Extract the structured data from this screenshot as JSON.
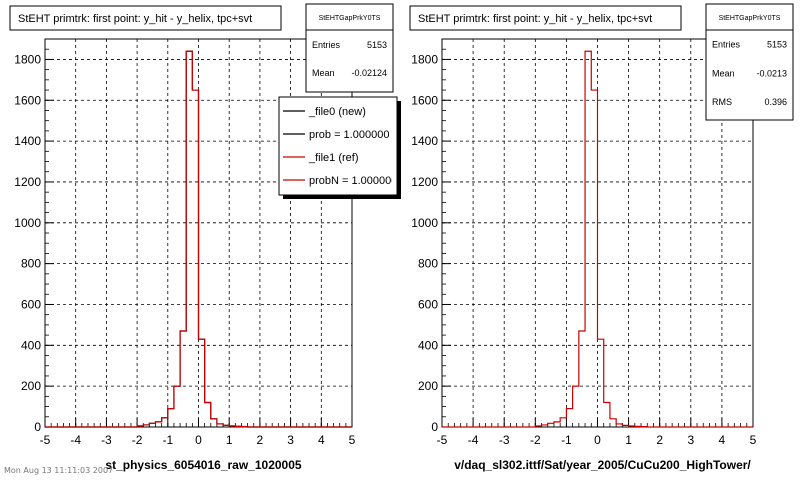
{
  "canvas": {
    "background": "#ffffff"
  },
  "footer_stamp": "Mon Aug 13 11:11:03 2007",
  "colors": {
    "new": "#000000",
    "ref": "#cc0000",
    "grid": "#000000"
  },
  "chart_data": [
    {
      "type": "line",
      "title": "StEHT primtrk: first point: y_hit - y_helix, tpc+svt",
      "xlabel": "st_physics_6054016_raw_1020005",
      "ylabel": "",
      "xlim": [
        -5,
        5
      ],
      "ylim": [
        0,
        1900
      ],
      "xticks": [
        -5,
        -4,
        -3,
        -2,
        -1,
        0,
        1,
        2,
        3,
        4,
        5
      ],
      "yticks": [
        0,
        200,
        400,
        600,
        800,
        1000,
        1200,
        1400,
        1600,
        1800
      ],
      "grid": true,
      "stats": {
        "name": "StEHTGapPrkY0TS",
        "rows": [
          {
            "label": "Entries",
            "value": "5153"
          },
          {
            "label": "Mean",
            "value": "-0.02124"
          }
        ]
      },
      "legend": {
        "placement": "top-right",
        "entries": [
          "_file0 (new)",
          "prob = 1.000000",
          "_file1 (ref)",
          "probN = 1.000000"
        ]
      },
      "bin_edges": [
        -5,
        -4.8,
        -4.6,
        -4.4,
        -4.2,
        -4,
        -3.8,
        -3.6,
        -3.4,
        -3.2,
        -3,
        -2.8,
        -2.6,
        -2.4,
        -2.2,
        -2,
        -1.8,
        -1.6,
        -1.4,
        -1.2,
        -1,
        -0.8,
        -0.6,
        -0.4,
        -0.2,
        0,
        0.2,
        0.4,
        0.6,
        0.8,
        1,
        1.2,
        1.4,
        1.6,
        1.8,
        2,
        2.2,
        2.4,
        2.6,
        2.8,
        3,
        3.2,
        3.4,
        3.6,
        3.8,
        4,
        4.2,
        4.4,
        4.6,
        4.8,
        5
      ],
      "series": [
        {
          "name": "_file0 (new)",
          "color": "#000000",
          "values": [
            0,
            0,
            0,
            0,
            0,
            0,
            0,
            0,
            0,
            0,
            0,
            0,
            0,
            0,
            0,
            5,
            10,
            18,
            25,
            45,
            90,
            200,
            470,
            1840,
            1650,
            430,
            120,
            40,
            15,
            8,
            5,
            3,
            2,
            0,
            0,
            0,
            0,
            0,
            0,
            0,
            0,
            0,
            0,
            0,
            0,
            0,
            0,
            0,
            0,
            0
          ]
        },
        {
          "name": "_file1 (ref)",
          "color": "#cc0000",
          "values": [
            0,
            0,
            0,
            0,
            0,
            0,
            0,
            0,
            0,
            0,
            0,
            0,
            0,
            0,
            0,
            5,
            10,
            18,
            25,
            45,
            90,
            200,
            470,
            1840,
            1650,
            430,
            120,
            40,
            15,
            8,
            5,
            3,
            2,
            0,
            0,
            0,
            0,
            0,
            0,
            0,
            0,
            0,
            0,
            0,
            0,
            0,
            0,
            0,
            0,
            0
          ]
        }
      ]
    },
    {
      "type": "line",
      "title": "StEHT primtrk: first point: y_hit - y_helix, tpc+svt",
      "xlabel": "v/daq_sl302.ittf/Sat/year_2005/CuCu200_HighTower/",
      "ylabel": "",
      "xlim": [
        -5,
        5
      ],
      "ylim": [
        0,
        1900
      ],
      "xticks": [
        -5,
        -4,
        -3,
        -2,
        -1,
        0,
        1,
        2,
        3,
        4,
        5
      ],
      "yticks": [
        0,
        200,
        400,
        600,
        800,
        1000,
        1200,
        1400,
        1600,
        1800
      ],
      "grid": true,
      "stats": {
        "name": "StEHTGapPrkY0TS",
        "rows": [
          {
            "label": "Entries",
            "value": "5153"
          },
          {
            "label": "Mean",
            "value": "-0.0213"
          },
          {
            "label": "RMS",
            "value": "0.396"
          }
        ]
      },
      "bin_edges": [
        -5,
        -4.8,
        -4.6,
        -4.4,
        -4.2,
        -4,
        -3.8,
        -3.6,
        -3.4,
        -3.2,
        -3,
        -2.8,
        -2.6,
        -2.4,
        -2.2,
        -2,
        -1.8,
        -1.6,
        -1.4,
        -1.2,
        -1,
        -0.8,
        -0.6,
        -0.4,
        -0.2,
        0,
        0.2,
        0.4,
        0.6,
        0.8,
        1,
        1.2,
        1.4,
        1.6,
        1.8,
        2,
        2.2,
        2.4,
        2.6,
        2.8,
        3,
        3.2,
        3.4,
        3.6,
        3.8,
        4,
        4.2,
        4.4,
        4.6,
        4.8,
        5
      ],
      "series": [
        {
          "name": "_file1 (ref)",
          "color": "#cc0000",
          "values": [
            0,
            0,
            0,
            0,
            0,
            0,
            0,
            0,
            0,
            0,
            0,
            0,
            0,
            0,
            0,
            5,
            10,
            18,
            25,
            45,
            90,
            200,
            470,
            1840,
            1650,
            430,
            120,
            40,
            15,
            8,
            5,
            3,
            2,
            0,
            0,
            0,
            0,
            0,
            0,
            0,
            0,
            0,
            0,
            0,
            0,
            0,
            0,
            0,
            0,
            0
          ]
        }
      ]
    }
  ]
}
